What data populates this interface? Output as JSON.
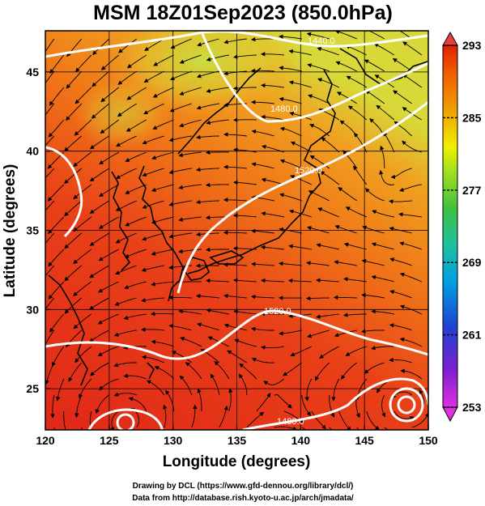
{
  "title": "MSM 18Z01Sep2023 (850.0hPa)",
  "x_axis": {
    "label": "Longitude (degrees)",
    "range": [
      120,
      150
    ],
    "ticks": [
      "120",
      "125",
      "130",
      "135",
      "140",
      "145",
      "150"
    ]
  },
  "y_axis": {
    "label": "Latitude (degrees)",
    "range": [
      22.4,
      47.6
    ],
    "ticks": [
      "25",
      "30",
      "35",
      "40",
      "45"
    ]
  },
  "colorbar": {
    "min": 253,
    "max": 293,
    "ticks": [
      "253",
      "261",
      "269",
      "277",
      "285",
      "293"
    ],
    "colors": [
      "#e030e0",
      "#8020d0",
      "#2040d0",
      "#00a0e0",
      "#20c0a0",
      "#40c040",
      "#a0e020",
      "#f0f000",
      "#f0a000",
      "#f06000",
      "#e02000"
    ]
  },
  "contour_labels": [
    "1440.0",
    "1480.0",
    "1520.0",
    "1520.0",
    "1480.0"
  ],
  "credits": {
    "line1": "Drawing by DCL (https://www.gfd-dennou.org/library/dcl/)",
    "line2": "Data from http://database.rish.kyoto-u.ac.jp/arch/jmadata/"
  },
  "colors": {
    "warm": "#e8381c",
    "mid": "#f07a14",
    "cool": "#d8e040",
    "coast": "#000000",
    "contour": "#ffffff"
  }
}
